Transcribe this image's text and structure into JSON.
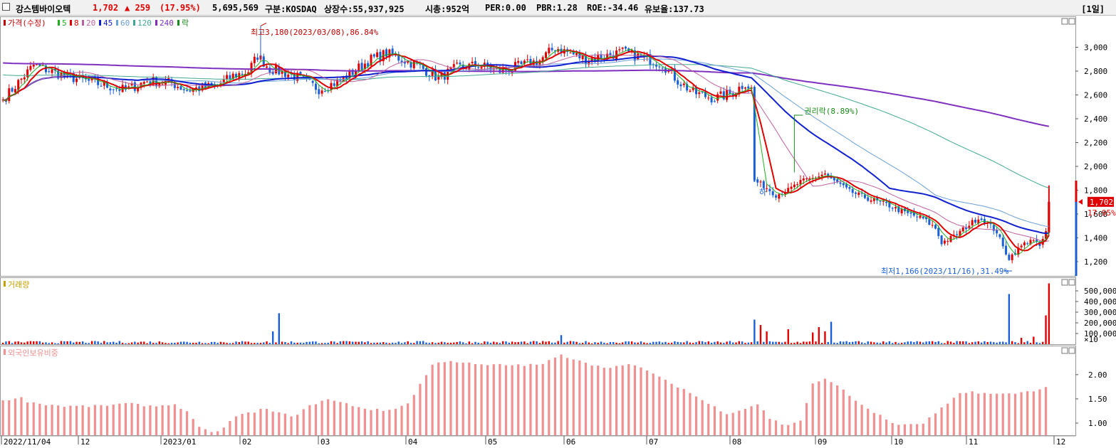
{
  "header": {
    "name": "강스템바이오텍",
    "price": "1,702",
    "change": "▲ 259",
    "change_pct": "(17.95%)",
    "volume": "5,695,569",
    "market": "구분:KOSDAQ",
    "shares": "상장수:55,937,925",
    "mcap": "시총:952억",
    "per": "PER:0.00",
    "pbr": "PBR:1.28",
    "roe": "ROE:-34.46",
    "float": "유보율:137.73",
    "period": "[1일]"
  },
  "colors": {
    "up": "#e00000",
    "down": "#1a5fd6",
    "ma5": "#1fae1f",
    "ma8": "#e00000",
    "ma20": "#c060a0",
    "ma45": "#1020d0",
    "ma60": "#6aa0d8",
    "ma120": "#40a890",
    "ma240": "#8030c0",
    "foreign": "#f09090"
  },
  "chart_data": [
    {
      "type": "candlestick",
      "title": "가격(수정)",
      "legend": [
        {
          "label": "가격(수정)",
          "color": "#c00000"
        },
        {
          "label": "5",
          "color": "#1fae1f"
        },
        {
          "label": "8",
          "color": "#e00000"
        },
        {
          "label": "20",
          "color": "#c060a0"
        },
        {
          "label": "45",
          "color": "#1020d0"
        },
        {
          "label": "60",
          "color": "#6aa0d8"
        },
        {
          "label": "120",
          "color": "#40a890"
        },
        {
          "label": "240",
          "color": "#8030c0"
        },
        {
          "label": "락",
          "color": "#1a8a1a"
        }
      ],
      "ylim": [
        1080,
        3260
      ],
      "yticks": [
        1200,
        1400,
        1600,
        1800,
        2000,
        2200,
        2400,
        2600,
        2800,
        3000
      ],
      "ytick_labels": [
        "1,200",
        "1,400",
        "1,600",
        "1,800",
        "2,000",
        "2,200",
        "2,400",
        "2,600",
        "2,800",
        "3,000"
      ],
      "xticks": [
        "2022/11/04",
        "12",
        "2023/01",
        "02",
        "03",
        "04",
        "05",
        "06",
        "07",
        "08",
        "09",
        "10",
        "11",
        "12"
      ],
      "close_keypoints": [
        [
          0,
          2560
        ],
        [
          10,
          2850
        ],
        [
          20,
          2760
        ],
        [
          30,
          2700
        ],
        [
          40,
          2640
        ],
        [
          47,
          2720
        ],
        [
          55,
          2700
        ],
        [
          60,
          2640
        ],
        [
          70,
          2680
        ],
        [
          75,
          2760
        ],
        [
          80,
          2800
        ],
        [
          83,
          2930
        ],
        [
          87,
          2820
        ],
        [
          95,
          2760
        ],
        [
          103,
          2650
        ],
        [
          110,
          2720
        ],
        [
          115,
          2810
        ],
        [
          120,
          2900
        ],
        [
          125,
          2950
        ],
        [
          135,
          2850
        ],
        [
          142,
          2740
        ],
        [
          148,
          2830
        ],
        [
          155,
          2850
        ],
        [
          162,
          2800
        ],
        [
          168,
          2840
        ],
        [
          175,
          2890
        ],
        [
          180,
          3000
        ],
        [
          185,
          2950
        ],
        [
          190,
          2900
        ],
        [
          195,
          2920
        ],
        [
          202,
          2960
        ],
        [
          210,
          2900
        ],
        [
          215,
          2860
        ],
        [
          220,
          2720
        ],
        [
          225,
          2620
        ],
        [
          232,
          2570
        ],
        [
          238,
          2620
        ],
        [
          242,
          2700
        ],
        [
          244,
          2650
        ],
        [
          245,
          1880
        ],
        [
          249,
          1820
        ],
        [
          252,
          1760
        ],
        [
          256,
          1800
        ],
        [
          260,
          1870
        ],
        [
          264,
          1900
        ],
        [
          268,
          1940
        ],
        [
          270,
          1890
        ],
        [
          272,
          1860
        ],
        [
          276,
          1790
        ],
        [
          282,
          1730
        ],
        [
          288,
          1680
        ],
        [
          294,
          1610
        ],
        [
          300,
          1560
        ],
        [
          304,
          1480
        ],
        [
          306,
          1360
        ],
        [
          310,
          1410
        ],
        [
          314,
          1490
        ],
        [
          318,
          1570
        ],
        [
          321,
          1520
        ],
        [
          324,
          1450
        ],
        [
          326,
          1320
        ],
        [
          328,
          1230
        ],
        [
          332,
          1330
        ],
        [
          335,
          1390
        ],
        [
          338,
          1330
        ],
        [
          340,
          1443
        ],
        [
          341,
          1702
        ]
      ],
      "annotations": [
        {
          "text": "최고3,180(2023/03/08),86.84%",
          "at_index": 84,
          "value": 3180
        },
        {
          "text": "권리락(8.89%)",
          "at_index": 258,
          "value": 1950
        },
        {
          "text": "최저1,166(2023/11/16),31.49%",
          "at_index": 323,
          "value": 1166
        },
        {
          "text": "하",
          "at_index": 245,
          "value": 1840
        }
      ],
      "last_price_label": "1,702",
      "last_pct_label": "17.95%"
    },
    {
      "type": "bar",
      "title": "거래량",
      "ylim": [
        0,
        600000
      ],
      "yticks": [
        100000,
        200000,
        300000,
        400000,
        500000
      ],
      "ytick_labels": [
        "100,000",
        "200,000",
        "300,000",
        "400,000",
        "500,000"
      ],
      "unit_label": "×10",
      "spikes": [
        {
          "i": 90,
          "v": 290000
        },
        {
          "i": 88,
          "v": 120000
        },
        {
          "i": 182,
          "v": 85000
        },
        {
          "i": 245,
          "v": 230000
        },
        {
          "i": 247,
          "v": 180000
        },
        {
          "i": 249,
          "v": 120000
        },
        {
          "i": 256,
          "v": 140000
        },
        {
          "i": 264,
          "v": 110000
        },
        {
          "i": 266,
          "v": 160000
        },
        {
          "i": 270,
          "v": 210000
        },
        {
          "i": 268,
          "v": 120000
        },
        {
          "i": 328,
          "v": 470000
        },
        {
          "i": 340,
          "v": 270000
        },
        {
          "i": 341,
          "v": 570000
        },
        {
          "i": 332,
          "v": 60000
        },
        {
          "i": 336,
          "v": 70000
        }
      ]
    },
    {
      "type": "bar",
      "title": "외국인보유비중",
      "ylim": [
        0.75,
        2.6
      ],
      "yticks": [
        1.0,
        1.5,
        2.0
      ],
      "ytick_labels": [
        "1.00",
        "1.50",
        "2.00"
      ],
      "keypoints": [
        [
          0,
          1.45
        ],
        [
          5,
          1.55
        ],
        [
          8,
          1.45
        ],
        [
          12,
          1.4
        ],
        [
          20,
          1.35
        ],
        [
          30,
          1.35
        ],
        [
          40,
          1.4
        ],
        [
          50,
          1.35
        ],
        [
          55,
          1.4
        ],
        [
          60,
          1.25
        ],
        [
          64,
          0.9
        ],
        [
          68,
          0.8
        ],
        [
          72,
          0.9
        ],
        [
          76,
          1.15
        ],
        [
          80,
          1.2
        ],
        [
          85,
          1.3
        ],
        [
          90,
          1.2
        ],
        [
          95,
          1.15
        ],
        [
          100,
          1.35
        ],
        [
          105,
          1.5
        ],
        [
          112,
          1.4
        ],
        [
          118,
          1.3
        ],
        [
          125,
          1.25
        ],
        [
          132,
          1.4
        ],
        [
          136,
          1.8
        ],
        [
          140,
          2.2
        ],
        [
          145,
          2.3
        ],
        [
          155,
          2.2
        ],
        [
          165,
          2.2
        ],
        [
          175,
          2.2
        ],
        [
          182,
          2.4
        ],
        [
          188,
          2.3
        ],
        [
          195,
          2.15
        ],
        [
          205,
          2.2
        ],
        [
          210,
          2.1
        ],
        [
          215,
          1.9
        ],
        [
          222,
          1.7
        ],
        [
          230,
          1.4
        ],
        [
          236,
          1.2
        ],
        [
          242,
          1.3
        ],
        [
          246,
          1.4
        ],
        [
          250,
          1.1
        ],
        [
          255,
          0.95
        ],
        [
          260,
          1.05
        ],
        [
          264,
          1.8
        ],
        [
          268,
          1.9
        ],
        [
          272,
          1.8
        ],
        [
          276,
          1.55
        ],
        [
          282,
          1.3
        ],
        [
          286,
          1.15
        ],
        [
          290,
          1.0
        ],
        [
          295,
          0.95
        ],
        [
          300,
          1.0
        ],
        [
          304,
          1.2
        ],
        [
          308,
          1.4
        ],
        [
          312,
          1.6
        ],
        [
          316,
          1.65
        ],
        [
          322,
          1.6
        ],
        [
          328,
          1.6
        ],
        [
          334,
          1.65
        ],
        [
          341,
          1.75
        ]
      ]
    }
  ]
}
